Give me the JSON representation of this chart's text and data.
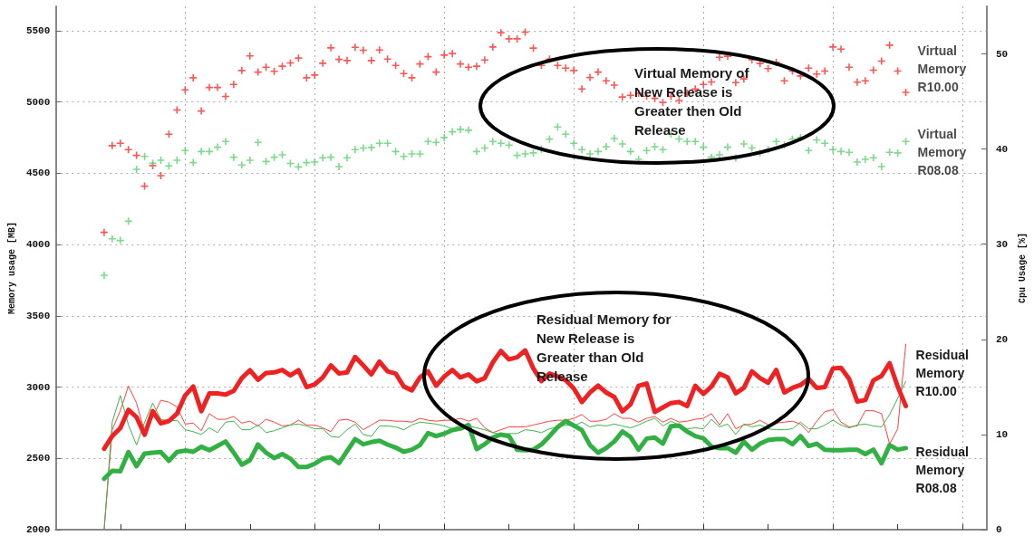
{
  "chart_data": {
    "type": "line",
    "ylabel": "Memory usage [MB]",
    "y2label": "Cpu Usage [%]",
    "categories": [
      null,
      null,
      null,
      null,
      null,
      null,
      null,
      null,
      null,
      null,
      null,
      null,
      null,
      null,
      null,
      null,
      null,
      null,
      null,
      null,
      null,
      null,
      null,
      null,
      null,
      null,
      null,
      null,
      null,
      null,
      null,
      null,
      null,
      null,
      null,
      null,
      null,
      null,
      null,
      null,
      null,
      null,
      null,
      null,
      null,
      null,
      null,
      null,
      null,
      null,
      null,
      null,
      null,
      null,
      null,
      null,
      null,
      null,
      null,
      null,
      null,
      null,
      null,
      null,
      null,
      null,
      null,
      null,
      null,
      null,
      null,
      null,
      null,
      null,
      null,
      null,
      null,
      null,
      null,
      null,
      null,
      null,
      null,
      null,
      null,
      null,
      null,
      null,
      null,
      null,
      null,
      null,
      null,
      null,
      null,
      null,
      null,
      null,
      null,
      null,
      null,
      null,
      null,
      null,
      null,
      null,
      null,
      null,
      null,
      null,
      null,
      null,
      null,
      null,
      null,
      null
    ],
    "ylim": [
      2000,
      5670
    ],
    "yticks": [
      2000,
      2500,
      3000,
      3500,
      4000,
      4500,
      5000,
      5500
    ],
    "y2lim": [
      0,
      55
    ],
    "y2ticks": [
      0,
      10,
      20,
      30,
      40,
      50
    ],
    "grid": true,
    "series": [
      {
        "axis": "y2",
        "marker": "none",
        "color": "#ff4040",
        "values": [
          null,
          null,
          null,
          null,
          null,
          null,
          0,
          10.5,
          12.5,
          15.1,
          13.3,
          10.3,
          11.8,
          13.6,
          13.4,
          12.9,
          11.1,
          11.2,
          10.4,
          12.2,
          11.6,
          11.6,
          11.9,
          11.2,
          11.4,
          10.9,
          11.6,
          11.3,
          10.9,
          11.0,
          11.5,
          11.0,
          11.0,
          10.7,
          10.3,
          11.5,
          11.6,
          11.3,
          10.5,
          11.0,
          11.5,
          11.5,
          11.4,
          11.4,
          11.3,
          11.7,
          11.5,
          11.4,
          11.5,
          11.5,
          11.7,
          11.4,
          11.7,
          10.7,
          10.2,
          10.5,
          10.8,
          10.8,
          10.8,
          11.0,
          11.2,
          11.4,
          11.5,
          11.5,
          11.7,
          12.1,
          11.4,
          11.4,
          11.6,
          12.2,
          11.7,
          11.7,
          11.3,
          11.7,
          11.9,
          11.3,
          11.7,
          11.3,
          11.4,
          11.6,
          11.7,
          12.2,
          11.0,
          12.2,
          10.6,
          11.0,
          11.1,
          11.5,
          11.0,
          11.2,
          11.3,
          11.4,
          11.1,
          10.2,
          11.4,
          12.4,
          12.6,
          11.3,
          10.8,
          10.9,
          12.5,
          12.5,
          12.2,
          9.0,
          10.6,
          19.5,
          null,
          null,
          null,
          null,
          null,
          null,
          null,
          null,
          null,
          null
        ]
      },
      {
        "axis": "y2",
        "marker": "none",
        "color": "#3cb44b",
        "values": [
          null,
          null,
          null,
          null,
          null,
          null,
          0,
          11.3,
          14.1,
          11.0,
          8.9,
          11.3,
          13.3,
          11.6,
          11.4,
          11.5,
          10.5,
          10.3,
          10.0,
          10.7,
          10.2,
          11.3,
          11.4,
          10.5,
          10.5,
          11.0,
          10.2,
          10.4,
          10.7,
          11.0,
          11.1,
          10.9,
          10.6,
          10.6,
          9.8,
          9.7,
          10.5,
          11.1,
          10.0,
          9.8,
          10.9,
          10.9,
          10.8,
          10.5,
          11.0,
          11.3,
          11.2,
          11.1,
          10.9,
          10.6,
          11.0,
          10.9,
          10.7,
          10.5,
          10.2,
          10.0,
          10.1,
          10.1,
          10.5,
          10.4,
          10.2,
          10.6,
          10.8,
          11.0,
          10.9,
          11.3,
          10.8,
          11.0,
          10.9,
          11.1,
          10.9,
          10.7,
          11.0,
          11.4,
          11.7,
          10.9,
          11.4,
          11.0,
          10.6,
          10.7,
          10.6,
          11.6,
          10.8,
          11.1,
          10.0,
          11.1,
          10.8,
          11.0,
          10.6,
          10.5,
          10.5,
          10.6,
          11.3,
          10.6,
          10.6,
          11.0,
          11.5,
          11.0,
          10.7,
          11.0,
          11.1,
          10.9,
          10.8,
          12.1,
          13.8,
          15.6,
          null,
          null,
          null,
          null,
          null,
          null,
          null,
          null,
          null,
          null
        ]
      },
      {
        "type": "scatter",
        "name": "Virtual Memory R10.00",
        "marker": "cross",
        "color": "#ff2a2a",
        "values": [
          null,
          null,
          null,
          null,
          null,
          null,
          4085,
          4693,
          4710,
          4665,
          4625,
          4409,
          4553,
          4483,
          4773,
          4943,
          5084,
          5169,
          4936,
          5101,
          5101,
          5038,
          5122,
          5220,
          5322,
          5209,
          5243,
          5214,
          5250,
          5273,
          5307,
          5169,
          5188,
          5271,
          5379,
          5298,
          5290,
          5383,
          5362,
          5290,
          5364,
          5300,
          5256,
          5199,
          5169,
          5266,
          5317,
          5209,
          5328,
          5339,
          5266,
          5243,
          5250,
          5294,
          5385,
          5485,
          5442,
          5442,
          5489,
          5377,
          5256,
          5300,
          5256,
          5237,
          5220,
          5091,
          5171,
          5209,
          5148,
          5118,
          5034,
          5046,
          5060,
          5040,
          5025,
          4995,
          5038,
          5010,
          5060,
          5090,
          5122,
          5140,
          5313,
          5320,
          5135,
          5161,
          5296,
          5269,
          5233,
          5277,
          5148,
          5216,
          5182,
          5237,
          5195,
          5216,
          5385,
          5370,
          5243,
          5138,
          5148,
          5222,
          5286,
          5398,
          5216,
          5067,
          null,
          null,
          null,
          null,
          null,
          null,
          null,
          null,
          null,
          null
        ]
      },
      {
        "type": "scatter",
        "name": "Virtual Memory R08.08",
        "marker": "cross",
        "color": "#5ccf6e",
        "values": [
          null,
          null,
          null,
          null,
          null,
          null,
          3784,
          4040,
          4028,
          4163,
          4527,
          4618,
          4570,
          4591,
          4551,
          4591,
          4659,
          4574,
          4652,
          4652,
          4682,
          4722,
          4612,
          4557,
          4591,
          4716,
          4582,
          4612,
          4629,
          4568,
          4544,
          4574,
          4578,
          4608,
          4612,
          4546,
          4608,
          4665,
          4676,
          4680,
          4710,
          4710,
          4652,
          4618,
          4635,
          4635,
          4722,
          4716,
          4750,
          4790,
          4807,
          4801,
          4652,
          4676,
          4722,
          4710,
          4697,
          4625,
          4635,
          4642,
          4669,
          4739,
          4824,
          4773,
          4710,
          4665,
          4635,
          4652,
          4686,
          4743,
          4705,
          4652,
          4597,
          4659,
          4686,
          4665,
          4773,
          4740,
          4722,
          4722,
          4682,
          4612,
          4629,
          4682,
          4606,
          4705,
          4676,
          4642,
          4665,
          4722,
          4697,
          4739,
          4750,
          4659,
          4733,
          4710,
          4665,
          4652,
          4646,
          4578,
          4597,
          4608,
          4546,
          4646,
          4642,
          4722,
          null,
          null,
          null,
          null,
          null,
          null,
          null,
          null,
          null,
          null
        ]
      },
      {
        "name": "Residual Memory R10.00",
        "marker": "none",
        "color": "#ee2222",
        "values": [
          null,
          null,
          null,
          null,
          null,
          null,
          2568,
          2656,
          2713,
          2840,
          2789,
          2665,
          2831,
          2745,
          2762,
          2814,
          2941,
          3004,
          2831,
          2956,
          2956,
          2947,
          2973,
          3063,
          3118,
          3051,
          3099,
          3103,
          3120,
          3082,
          3118,
          3000,
          3019,
          3068,
          3152,
          3095,
          3103,
          3211,
          3152,
          3089,
          3179,
          3110,
          3095,
          3004,
          2977,
          3068,
          3110,
          3009,
          3074,
          3120,
          3068,
          3089,
          3040,
          3063,
          3173,
          3253,
          3194,
          3209,
          3257,
          3131,
          3042,
          3095,
          3074,
          3047,
          2990,
          2895,
          2962,
          3011,
          2962,
          2930,
          2829,
          2878,
          3009,
          3025,
          2825,
          2857,
          2888,
          2895,
          2867,
          3009,
          2952,
          3004,
          3093,
          3068,
          2956,
          2994,
          3110,
          3063,
          3030,
          3120,
          2962,
          2994,
          3015,
          3057,
          2994,
          3000,
          3131,
          3135,
          3057,
          2899,
          2909,
          3047,
          3078,
          3167,
          3004,
          2867,
          null,
          null,
          null,
          null,
          null,
          null,
          null,
          null,
          null,
          null
        ]
      },
      {
        "name": "Residual Memory R08.08",
        "marker": "none",
        "color": "#33b044",
        "values": [
          null,
          null,
          null,
          null,
          null,
          null,
          2357,
          2413,
          2409,
          2544,
          2445,
          2534,
          2540,
          2544,
          2483,
          2544,
          2555,
          2546,
          2582,
          2557,
          2587,
          2618,
          2540,
          2456,
          2487,
          2597,
          2540,
          2502,
          2530,
          2498,
          2439,
          2439,
          2462,
          2498,
          2508,
          2466,
          2551,
          2635,
          2599,
          2614,
          2624,
          2597,
          2576,
          2546,
          2561,
          2593,
          2677,
          2656,
          2673,
          2698,
          2709,
          2734,
          2565,
          2599,
          2646,
          2667,
          2656,
          2561,
          2557,
          2561,
          2597,
          2656,
          2719,
          2762,
          2730,
          2698,
          2593,
          2540,
          2572,
          2618,
          2688,
          2650,
          2561,
          2639,
          2646,
          2603,
          2726,
          2730,
          2688,
          2656,
          2641,
          2582,
          2572,
          2572,
          2540,
          2618,
          2561,
          2603,
          2629,
          2635,
          2635,
          2599,
          2656,
          2587,
          2603,
          2561,
          2557,
          2557,
          2561,
          2561,
          2530,
          2561,
          2466,
          2593,
          2561,
          2572,
          null,
          null,
          null,
          null,
          null,
          null,
          null,
          null,
          null,
          null
        ]
      }
    ],
    "annotations": [
      "Virtual Memory of New Release is Greater then Old Release",
      "Residual Memory for New Release is Greater than Old Release"
    ]
  }
}
